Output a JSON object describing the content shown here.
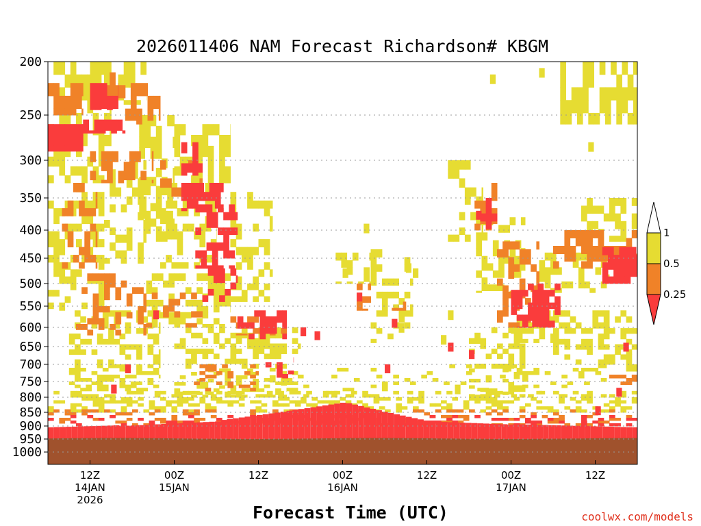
{
  "chart_data": {
    "type": "heatmap",
    "title": "2026011406 NAM Forecast Richardson# KBGM",
    "xlabel": "Forecast Time (UTC)",
    "ylabel": "",
    "y_axis": "pressure (hPa), inverted, log-like spacing",
    "ylim": [
      200,
      1000
    ],
    "y_ticks": [
      "200",
      "250",
      "300",
      "350",
      "400",
      "450",
      "500",
      "550",
      "600",
      "650",
      "700",
      "750",
      "800",
      "850",
      "900",
      "950",
      "1000"
    ],
    "x_axis_hours": [
      0,
      84
    ],
    "x_ticks": [
      {
        "hour": 6,
        "lines": [
          "12Z",
          "14JAN",
          "2026"
        ]
      },
      {
        "hour": 18,
        "lines": [
          "00Z",
          "15JAN"
        ]
      },
      {
        "hour": 30,
        "lines": [
          "12Z"
        ]
      },
      {
        "hour": 42,
        "lines": [
          "00Z",
          "16JAN"
        ]
      },
      {
        "hour": 54,
        "lines": [
          "12Z"
        ]
      },
      {
        "hour": 66,
        "lines": [
          "00Z",
          "17JAN"
        ]
      },
      {
        "hour": 78,
        "lines": [
          "12Z"
        ]
      }
    ],
    "legend": {
      "position": "right",
      "levels": [
        "1",
        "0.5",
        "0.25"
      ],
      "categories": [
        {
          "range": "> 1",
          "color": "#ffffff"
        },
        {
          "range": "0.5 - 1",
          "color": "#e6dc32"
        },
        {
          "range": "0.25 - 0.5",
          "color": "#f08228"
        },
        {
          "range": "< 0.25",
          "color": "#fa3c3c"
        }
      ]
    },
    "surface_color": "#a0522d",
    "grid": "dotted horizontal at pressure ticks",
    "regions": [
      {
        "category": "<0.25",
        "description": "Continuous low-level layer ~850-950 hPa across the whole period, deepest near 00Z 16JAN (to ~815 hPa)"
      },
      {
        "category": "<0.25",
        "description": "Upper-level patches 250-300 hPa early 14JAN; descending band 330-450 hPa around 15JAN 06Z"
      },
      {
        "category": "<0.25",
        "description": "Mid-level cluster 500-600 hPa on 17JAN 00-06Z; 430-500 hPa near 17JAN 12-18Z"
      },
      {
        "category": "0.25-0.5",
        "description": "Scattered mid/upper patches 200-650 hPa on 14-15JAN; 400-480 hPa late 17JAN"
      },
      {
        "category": "0.5-1",
        "description": "Widespread scattered cover 200-850 hPa during 14-15JAN; upper 200-260 hPa late 17JAN"
      }
    ]
  },
  "footer": {
    "credit": "coolwx.com/models"
  }
}
